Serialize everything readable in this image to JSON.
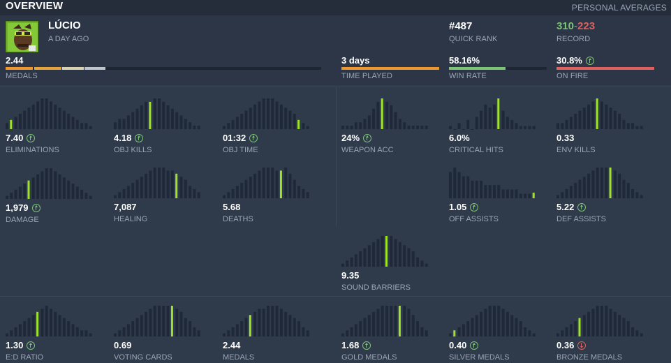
{
  "header": {
    "title": "OVERVIEW",
    "personal_averages": "PERSONAL AVERAGES"
  },
  "hero": {
    "name": "LÚCIO",
    "last_played": "A DAY AGO",
    "avatar_icon": "lucio-portrait-icon"
  },
  "summary": {
    "quick_rank": {
      "value": "#487",
      "label": "QUICK RANK"
    },
    "record": {
      "wins": "310",
      "sep": "-",
      "losses": "223",
      "label": "RECORD",
      "win_color": "#7cc576",
      "loss_color": "#e06060"
    },
    "medals": {
      "value": "2.44",
      "label": "MEDALS"
    },
    "time_played": {
      "value": "3 days",
      "label": "TIME PLAYED",
      "fill": 1.0,
      "color": "#f0962e"
    },
    "win_rate": {
      "value": "58.16%",
      "label": "WIN RATE",
      "fill": 0.58,
      "color": "#7cc576"
    },
    "on_fire": {
      "value": "30.8%",
      "label": "ON FIRE",
      "fill": 1.0,
      "color": "#e06060",
      "trend": "up"
    }
  },
  "medal_bar_segments": [
    {
      "color": "#f0962e",
      "fraction": 0.09
    },
    {
      "color": "#e8a43a",
      "fraction": 0.09
    },
    {
      "color": "#d9d2b0",
      "fraction": 0.07
    },
    {
      "color": "#c0c4cc",
      "fraction": 0.07
    }
  ],
  "colors": {
    "highlight": "#9ee22a",
    "bar": "#1f2838",
    "label": "#9aa6b8",
    "up": "#7cc576",
    "down": "#e06060"
  },
  "stats": [
    {
      "id": "eliminations",
      "value": "7.40",
      "label": "ELIMINATIONS",
      "trend": "up",
      "bars": [
        2,
        3,
        4,
        5,
        6,
        7,
        8,
        9,
        10,
        10,
        9,
        8,
        7,
        6,
        5,
        4,
        3,
        2,
        2,
        1
      ],
      "highlight": 1
    },
    {
      "id": "obj-kills",
      "value": "4.18",
      "label": "OBJ KILLS",
      "trend": "up",
      "bars": [
        2,
        3,
        3,
        4,
        5,
        6,
        7,
        8,
        8,
        9,
        9,
        8,
        7,
        6,
        5,
        4,
        3,
        2,
        1,
        1
      ],
      "highlight": 8
    },
    {
      "id": "obj-time",
      "value": "01:32",
      "label": "OBJ TIME",
      "trend": "up",
      "bars": [
        1,
        2,
        3,
        4,
        5,
        6,
        7,
        8,
        9,
        10,
        10,
        10,
        9,
        8,
        7,
        6,
        5,
        3,
        2,
        1
      ],
      "highlight": 17
    },
    {
      "id": "weapon-acc",
      "value": "24%",
      "label": "WEAPON ACC",
      "trend": "up",
      "bars": [
        1,
        1,
        1,
        2,
        2,
        3,
        4,
        6,
        8,
        9,
        8,
        7,
        5,
        3,
        2,
        1,
        1,
        1,
        1,
        1
      ],
      "highlight": 9
    },
    {
      "id": "critical-hits",
      "value": "6.0%",
      "label": "CRITICAL HITS",
      "trend": "none",
      "bars": [
        1,
        0,
        2,
        0,
        3,
        0,
        4,
        6,
        8,
        7,
        8,
        10,
        6,
        4,
        3,
        2,
        1,
        1,
        1,
        1
      ],
      "highlight": 11
    },
    {
      "id": "env-kills",
      "value": "0.33",
      "label": "ENV KILLS",
      "trend": "none",
      "bars": [
        2,
        2,
        3,
        4,
        5,
        6,
        7,
        8,
        9,
        10,
        9,
        8,
        7,
        6,
        5,
        3,
        2,
        2,
        1,
        1
      ],
      "highlight": 9
    },
    {
      "id": "damage",
      "value": "1,979",
      "label": "DAMAGE",
      "trend": "up",
      "bars": [
        1,
        2,
        3,
        4,
        5,
        6,
        7,
        8,
        9,
        10,
        10,
        9,
        8,
        7,
        6,
        5,
        4,
        3,
        2,
        1
      ],
      "highlight": 5
    },
    {
      "id": "healing",
      "value": "7,087",
      "label": "HEALING",
      "trend": "none",
      "bars": [
        1,
        2,
        3,
        4,
        5,
        6,
        7,
        8,
        9,
        10,
        10,
        10,
        9,
        9,
        8,
        7,
        6,
        4,
        3,
        2
      ],
      "highlight": 14
    },
    {
      "id": "deaths",
      "value": "5.68",
      "label": "DEATHS",
      "trend": "none",
      "bars": [
        1,
        2,
        3,
        4,
        5,
        6,
        7,
        8,
        9,
        10,
        10,
        10,
        9,
        9,
        10,
        8,
        6,
        4,
        3,
        2
      ],
      "highlight": 13
    },
    {
      "id": "off-assists",
      "value": "1.05",
      "label": "OFF ASSISTS",
      "trend": "up",
      "bars": [
        6,
        7,
        6,
        5,
        5,
        4,
        4,
        4,
        3,
        3,
        3,
        3,
        2,
        2,
        2,
        2,
        1,
        1,
        1,
        1
      ],
      "highlight": 19
    },
    {
      "id": "def-assists",
      "value": "5.22",
      "label": "DEF ASSISTS",
      "trend": "up",
      "bars": [
        1,
        2,
        3,
        4,
        5,
        6,
        7,
        8,
        9,
        10,
        10,
        10,
        10,
        9,
        8,
        6,
        5,
        3,
        2,
        1
      ],
      "highlight": 12
    },
    {
      "id": "sound-barriers",
      "value": "9.35",
      "label": "SOUND BARRIERS",
      "trend": "none",
      "bars": [
        1,
        2,
        3,
        4,
        5,
        6,
        7,
        8,
        9,
        10,
        10,
        10,
        9,
        8,
        7,
        6,
        5,
        3,
        2,
        1
      ],
      "highlight": 10
    },
    {
      "id": "ed-ratio",
      "value": "1.30",
      "label": "E:D RATIO",
      "trend": "up",
      "bars": [
        1,
        2,
        3,
        4,
        5,
        6,
        7,
        8,
        9,
        10,
        9,
        8,
        7,
        6,
        5,
        4,
        3,
        2,
        2,
        1
      ],
      "highlight": 7
    },
    {
      "id": "voting-cards",
      "value": "0.69",
      "label": "VOTING CARDS",
      "trend": "none",
      "bars": [
        1,
        2,
        3,
        4,
        5,
        6,
        7,
        8,
        9,
        10,
        10,
        10,
        10,
        10,
        9,
        8,
        6,
        5,
        3,
        2
      ],
      "highlight": 13
    },
    {
      "id": "medals-hist",
      "value": "2.44",
      "label": "MEDALS",
      "trend": "none",
      "bars": [
        1,
        2,
        3,
        4,
        5,
        6,
        7,
        8,
        9,
        9,
        10,
        10,
        10,
        9,
        8,
        7,
        6,
        5,
        3,
        2
      ],
      "highlight": 6
    },
    {
      "id": "gold-medals",
      "value": "1.68",
      "label": "GOLD MEDALS",
      "trend": "up",
      "bars": [
        1,
        2,
        3,
        4,
        5,
        6,
        7,
        8,
        9,
        10,
        10,
        10,
        10,
        10,
        10,
        9,
        7,
        5,
        3,
        2
      ],
      "highlight": 13
    },
    {
      "id": "silver-medals",
      "value": "0.40",
      "label": "SILVER MEDALS",
      "trend": "up",
      "bars": [
        1,
        2,
        3,
        4,
        5,
        6,
        7,
        8,
        9,
        10,
        10,
        10,
        9,
        8,
        7,
        6,
        5,
        3,
        2,
        1
      ],
      "highlight": 1
    },
    {
      "id": "bronze-medals",
      "value": "0.36",
      "label": "BRONZE MEDALS",
      "trend": "down",
      "bars": [
        1,
        2,
        3,
        4,
        5,
        6,
        7,
        8,
        9,
        10,
        10,
        10,
        9,
        8,
        7,
        6,
        5,
        3,
        2,
        1
      ],
      "highlight": 5
    }
  ]
}
